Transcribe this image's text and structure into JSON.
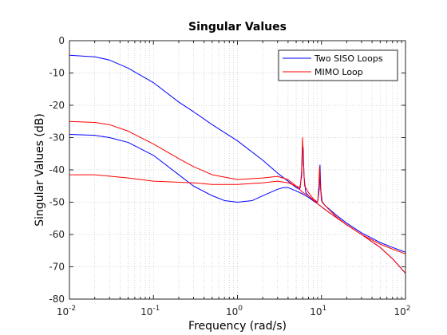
{
  "chart_data": {
    "type": "line",
    "title": "Singular Values",
    "xlabel": "Frequency (rad/s)",
    "ylabel": "Singular Values (dB)",
    "x_scale": "log",
    "xlim": [
      0.01,
      100
    ],
    "ylim": [
      -80,
      0
    ],
    "x_ticks": [
      {
        "value": 0.01,
        "base": "10",
        "exp": "-2"
      },
      {
        "value": 0.1,
        "base": "10",
        "exp": "-1"
      },
      {
        "value": 1,
        "base": "10",
        "exp": "0"
      },
      {
        "value": 10,
        "base": "10",
        "exp": "1"
      },
      {
        "value": 100,
        "base": "10",
        "exp": "2"
      }
    ],
    "y_ticks": [
      0,
      -10,
      -20,
      -30,
      -40,
      -50,
      -60,
      -70,
      -80
    ],
    "grid": "minor dotted",
    "legend_position": "top-right",
    "series": [
      {
        "name": "Two SISO Loops",
        "color": "#0000ff",
        "points": [
          [
            0.01,
            -4.5
          ],
          [
            0.02,
            -5
          ],
          [
            0.03,
            -6
          ],
          [
            0.05,
            -8.5
          ],
          [
            0.1,
            -13
          ],
          [
            0.2,
            -19
          ],
          [
            0.3,
            -22
          ],
          [
            0.5,
            -26
          ],
          [
            1,
            -31
          ],
          [
            2,
            -37
          ],
          [
            3,
            -41
          ],
          [
            4,
            -43.5
          ],
          [
            5,
            -45.5
          ],
          [
            5.5,
            -46
          ],
          [
            5.8,
            -42
          ],
          [
            5.95,
            -33
          ],
          [
            6.05,
            -33
          ],
          [
            6.2,
            -42
          ],
          [
            6.5,
            -47
          ],
          [
            7,
            -48
          ],
          [
            8,
            -49.5
          ],
          [
            9,
            -50
          ],
          [
            9.4,
            -46
          ],
          [
            9.6,
            -38.5
          ],
          [
            9.8,
            -46
          ],
          [
            10.2,
            -50
          ],
          [
            11,
            -51
          ],
          [
            15,
            -54
          ],
          [
            20,
            -56.5
          ],
          [
            30,
            -59.5
          ],
          [
            50,
            -62.5
          ],
          [
            70,
            -64
          ],
          [
            100,
            -65.5
          ]
        ]
      },
      {
        "name": "",
        "color": "#0000ff",
        "points": [
          [
            0.01,
            -29
          ],
          [
            0.02,
            -29.3
          ],
          [
            0.03,
            -30
          ],
          [
            0.05,
            -31.5
          ],
          [
            0.1,
            -35.5
          ],
          [
            0.2,
            -41.5
          ],
          [
            0.3,
            -45
          ],
          [
            0.5,
            -48
          ],
          [
            0.7,
            -49.5
          ],
          [
            1,
            -50
          ],
          [
            1.5,
            -49.5
          ],
          [
            2,
            -48
          ],
          [
            3,
            -46
          ],
          [
            3.5,
            -45.5
          ],
          [
            4,
            -45.5
          ],
          [
            5,
            -46.5
          ],
          [
            6,
            -47.5
          ],
          [
            7,
            -48.5
          ],
          [
            9,
            -50.5
          ],
          [
            12,
            -53
          ],
          [
            20,
            -57
          ],
          [
            30,
            -60
          ],
          [
            50,
            -64
          ],
          [
            70,
            -67.5
          ],
          [
            100,
            -72
          ]
        ]
      },
      {
        "name": "MIMO Loop",
        "color": "#ff0000",
        "points": [
          [
            0.01,
            -25
          ],
          [
            0.02,
            -25.3
          ],
          [
            0.03,
            -26
          ],
          [
            0.05,
            -28
          ],
          [
            0.1,
            -32
          ],
          [
            0.2,
            -36.5
          ],
          [
            0.3,
            -39
          ],
          [
            0.5,
            -41.5
          ],
          [
            1,
            -43
          ],
          [
            2,
            -42.5
          ],
          [
            3,
            -42
          ],
          [
            4,
            -43
          ],
          [
            5,
            -45
          ],
          [
            5.6,
            -45.5
          ],
          [
            5.8,
            -40
          ],
          [
            5.95,
            -30
          ],
          [
            6.1,
            -38
          ],
          [
            6.3,
            -45
          ],
          [
            7,
            -47
          ],
          [
            8,
            -49
          ],
          [
            9,
            -50
          ],
          [
            9.3,
            -45
          ],
          [
            9.5,
            -39
          ],
          [
            9.7,
            -45
          ],
          [
            10,
            -49.5
          ],
          [
            11,
            -51
          ],
          [
            15,
            -54.5
          ],
          [
            20,
            -57
          ],
          [
            30,
            -60
          ],
          [
            50,
            -63
          ],
          [
            70,
            -64.5
          ],
          [
            100,
            -66
          ]
        ]
      },
      {
        "name": "",
        "color": "#ff0000",
        "points": [
          [
            0.01,
            -41.5
          ],
          [
            0.02,
            -41.5
          ],
          [
            0.05,
            -42.5
          ],
          [
            0.1,
            -43.5
          ],
          [
            0.3,
            -44
          ],
          [
            0.5,
            -44.5
          ],
          [
            1,
            -44.5
          ],
          [
            2,
            -44
          ],
          [
            3,
            -43.5
          ],
          [
            4,
            -44
          ],
          [
            5,
            -45
          ],
          [
            6,
            -47
          ],
          [
            7,
            -48
          ],
          [
            9,
            -50.5
          ],
          [
            12,
            -53
          ],
          [
            20,
            -57
          ],
          [
            30,
            -60
          ],
          [
            50,
            -64
          ],
          [
            70,
            -67.5
          ],
          [
            100,
            -72
          ]
        ]
      }
    ]
  }
}
